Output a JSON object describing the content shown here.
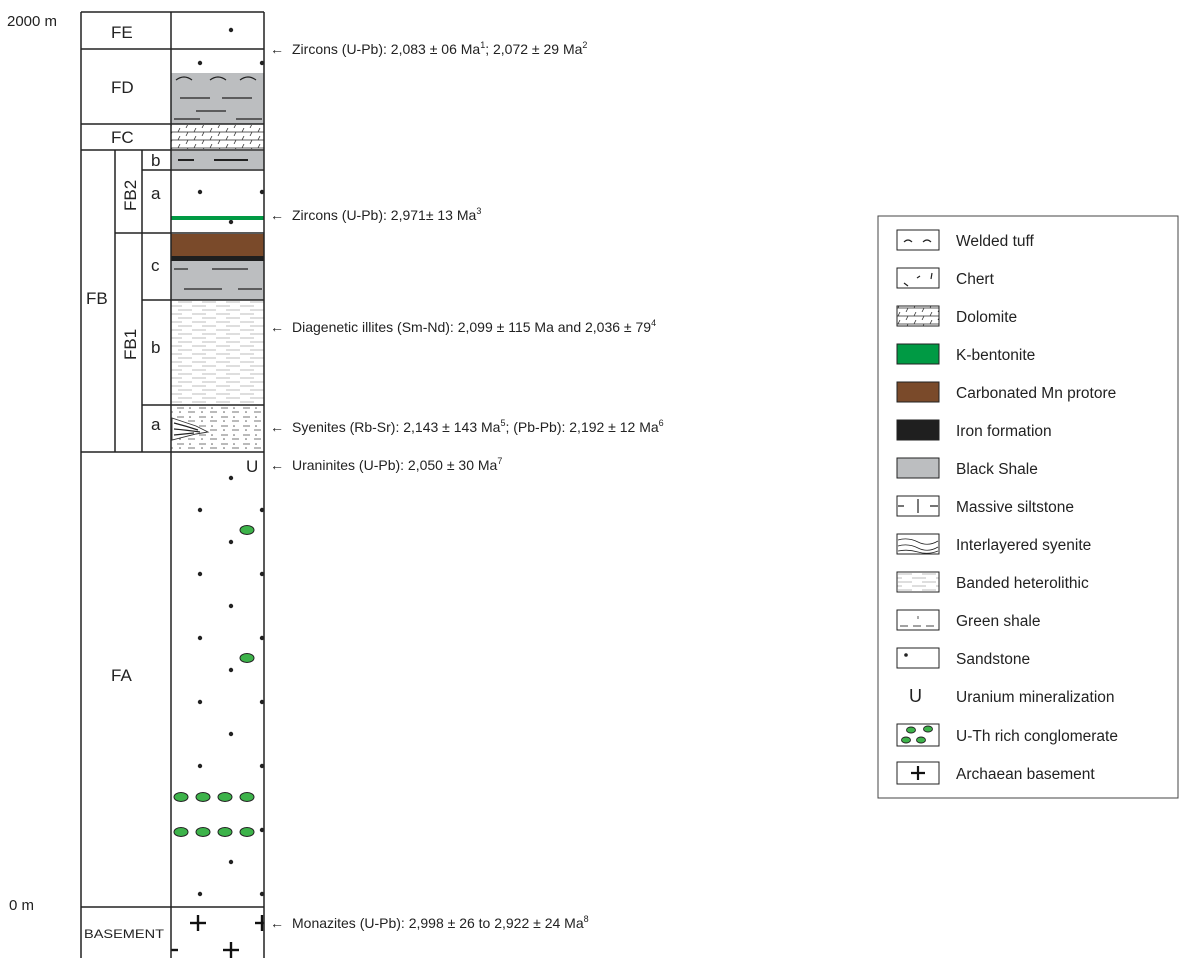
{
  "depth_labels": {
    "top": "2000 m",
    "bottom": "0 m"
  },
  "units": {
    "FE": "FE",
    "FD": "FD",
    "FC": "FC",
    "FB": "FB",
    "FB2": "FB2",
    "FB1": "FB1",
    "FA": "FA",
    "basement": "BASEMENT",
    "sub_b": "b",
    "sub_a": "a",
    "sub_c": "c"
  },
  "uranium_symbol": "U",
  "annotations": [
    {
      "text": "Zircons (U-Pb): 2,083 ± 06 Ma",
      "sup": "1",
      "text2": "; 2,072 ± 29 Ma",
      "sup2": "2"
    },
    {
      "text": "Zircons (U-Pb): 2,971± 13 Ma",
      "sup": "3",
      "text2": "",
      "sup2": ""
    },
    {
      "text": "Diagenetic illites (Sm-Nd): 2,099 ± 115 Ma and 2,036 ± 79",
      "sup": "4",
      "text2": "",
      "sup2": ""
    },
    {
      "text": "Syenites (Rb-Sr): 2,143 ± 143 Ma",
      "sup": "5",
      "text2": "; (Pb-Pb): 2,192 ± 12 Ma",
      "sup2": "6"
    },
    {
      "text": "Uraninites (U-Pb): 2,050 ± 30 Ma",
      "sup": "7",
      "text2": "",
      "sup2": ""
    },
    {
      "text": "Monazites (U-Pb): 2,998 ± 26 to 2,922 ± 24 Ma",
      "sup": "8",
      "text2": "",
      "sup2": ""
    }
  ],
  "legend": [
    {
      "label": "Welded tuff",
      "icon": "welded-tuff"
    },
    {
      "label": "Chert",
      "icon": "chert"
    },
    {
      "label": "Dolomite",
      "icon": "dolomite"
    },
    {
      "label": "K-bentonite",
      "icon": "k-bentonite",
      "color": "#009a44"
    },
    {
      "label": "Carbonated Mn protore",
      "icon": "mn-protore",
      "color": "#7a4a2a"
    },
    {
      "label": "Iron formation",
      "icon": "iron-formation",
      "color": "#1f1f1f"
    },
    {
      "label": "Black Shale",
      "icon": "black-shale",
      "color": "#bcbec0"
    },
    {
      "label": "Massive siltstone",
      "icon": "massive-siltstone"
    },
    {
      "label": "Interlayered syenite",
      "icon": "interlayered-syenite"
    },
    {
      "label": "Banded heterolithic",
      "icon": "banded-heterolithic"
    },
    {
      "label": "Green shale",
      "icon": "green-shale"
    },
    {
      "label": "Sandstone",
      "icon": "sandstone"
    },
    {
      "label": "Uranium mineralization",
      "icon": "uranium"
    },
    {
      "label": "U-Th rich conglomerate",
      "icon": "conglomerate",
      "color": "#3db34a"
    },
    {
      "label": "Archaean basement",
      "icon": "basement"
    }
  ],
  "colors": {
    "k_bentonite": "#009a44",
    "mn_protore": "#7a4a2a",
    "iron_formation": "#1f1f1f",
    "black_shale": "#bcbec0",
    "conglomerate": "#3db34a"
  }
}
